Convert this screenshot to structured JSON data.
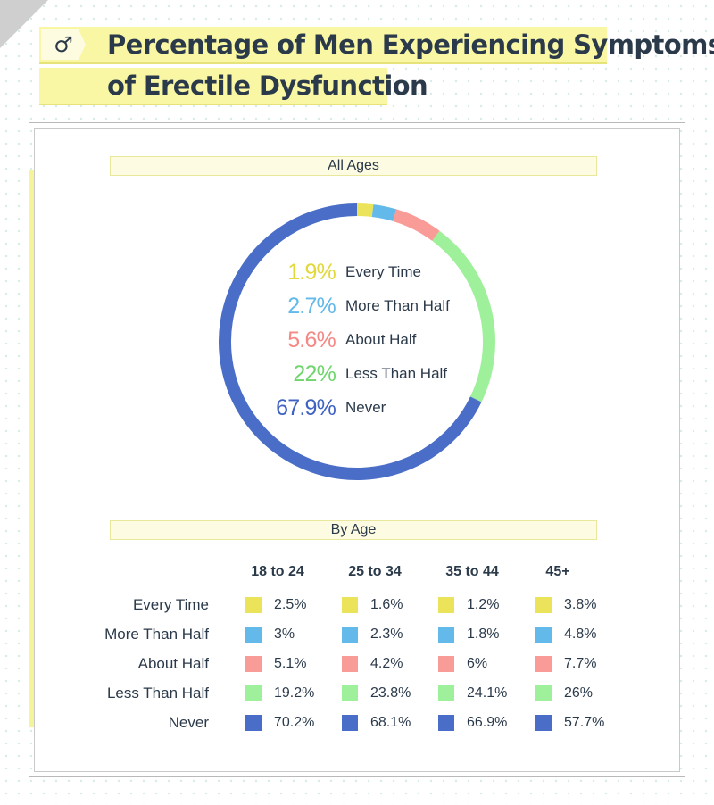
{
  "header": {
    "icon": "male-symbol-icon",
    "icon_glyph": "♂",
    "title_line1": "Percentage of Men Experiencing Symptoms",
    "title_line2": "of Erectile Dysfunction"
  },
  "colors": {
    "every_time": "#ebe45a",
    "more_than_half": "#62b9ea",
    "about_half": "#f99b97",
    "less_than_half": "#9ef09a",
    "never": "#4a6ec8",
    "every_time_text": "#e2d83a",
    "more_than_half_text": "#62b9ea",
    "about_half_text": "#f58985",
    "less_than_half_text": "#6fd56c",
    "never_text": "#3f63c2"
  },
  "chart_data": [
    {
      "type": "pie",
      "title": "All Ages",
      "slices": [
        {
          "label": "Every Time",
          "value": 1.9,
          "display": "1.9%"
        },
        {
          "label": "More Than Half",
          "value": 2.7,
          "display": "2.7%"
        },
        {
          "label": "About Half",
          "value": 5.6,
          "display": "5.6%"
        },
        {
          "label": "Less Than Half",
          "value": 22,
          "display": "22%"
        },
        {
          "label": "Never",
          "value": 67.9,
          "display": "67.9%"
        }
      ]
    },
    {
      "type": "table",
      "title": "By Age",
      "columns": [
        "18 to 24",
        "25 to 34",
        "35 to 44",
        "45+"
      ],
      "rows": [
        {
          "label": "Every Time",
          "values": [
            "2.5%",
            "1.6%",
            "1.2%",
            "3.8%"
          ]
        },
        {
          "label": "More Than Half",
          "values": [
            "3%",
            "2.3%",
            "1.8%",
            "4.8%"
          ]
        },
        {
          "label": "About Half",
          "values": [
            "5.1%",
            "4.2%",
            "6%",
            "7.7%"
          ]
        },
        {
          "label": "Less Than Half",
          "values": [
            "19.2%",
            "23.8%",
            "24.1%",
            "26%"
          ]
        },
        {
          "label": "Never",
          "values": [
            "70.2%",
            "68.1%",
            "66.9%",
            "57.7%"
          ]
        }
      ]
    }
  ]
}
